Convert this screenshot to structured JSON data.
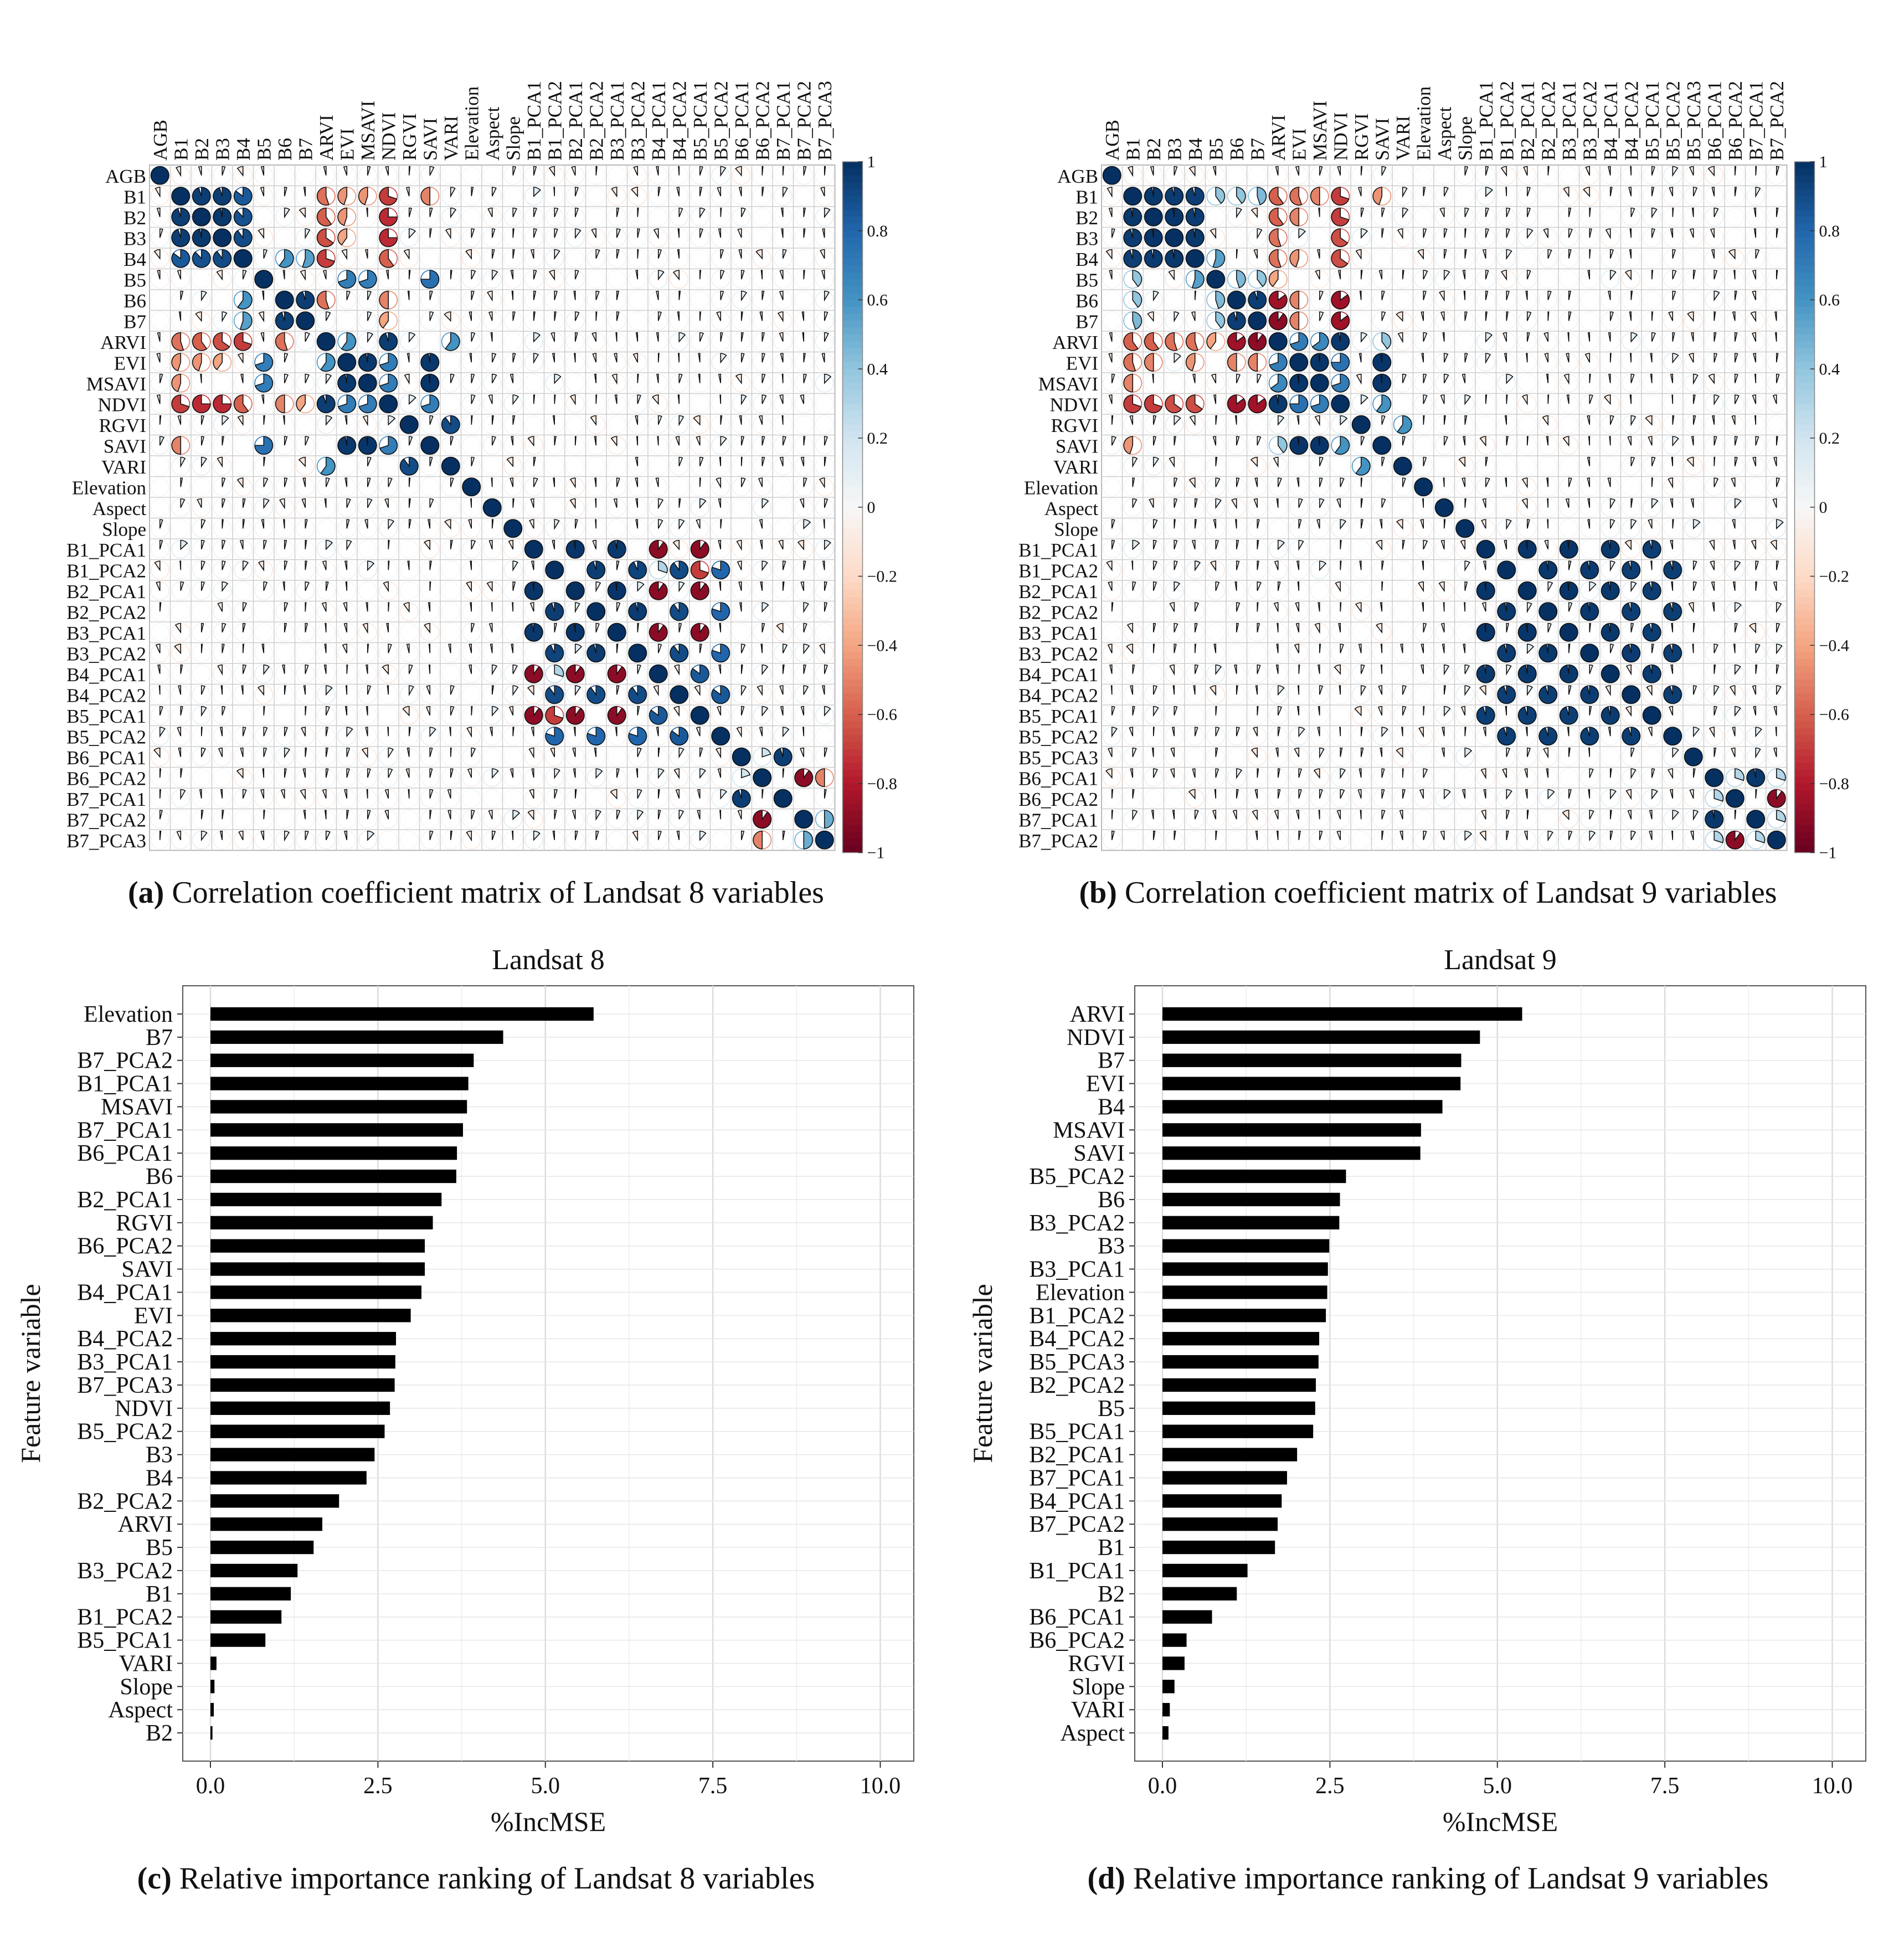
{
  "captions": {
    "a": {
      "letter": "(a)",
      "text": " Correlation coefficient matrix of Landsat 8 variables"
    },
    "b": {
      "letter": "(b)",
      "text": " Correlation coefficient matrix of Landsat 9 variables"
    },
    "c": {
      "letter": "(c)",
      "text": " Relative importance ranking of Landsat 8 variables"
    },
    "d": {
      "letter": "(d)",
      "text": " Relative importance ranking of Landsat 9 variables"
    }
  },
  "colors": {
    "positive": "#0b3a6e",
    "negative": "#7a0a1d",
    "bar": "#000000",
    "grid": "#cfcfcf"
  },
  "chart_data": [
    {
      "type": "heatmap",
      "variables": [
        "AGB",
        "B1",
        "B2",
        "B3",
        "B4",
        "B5",
        "B6",
        "B7",
        "ARVI",
        "EVI",
        "MSAVI",
        "NDVI",
        "RGVI",
        "SAVI",
        "VARI",
        "Elevation",
        "Aspect",
        "Slope",
        "B1_PCA1",
        "B1_PCA2",
        "B2_PCA1",
        "B2_PCA2",
        "B3_PCA1",
        "B3_PCA2",
        "B4_PCA1",
        "B4_PCA2",
        "B5_PCA1",
        "B5_PCA2",
        "B6_PCA1",
        "B6_PCA2",
        "B7_PCA1",
        "B7_PCA2",
        "B7_PCA3"
      ],
      "colorbar": {
        "range": [
          -1,
          1
        ],
        "ticks": [
          "1",
          "0.8",
          "0.6",
          "0.4",
          "0.2",
          "0",
          "−0.2",
          "−0.4",
          "−0.6",
          "−0.8",
          "−1"
        ]
      },
      "strong_pairs": [
        [
          "B1",
          "B2",
          0.95
        ],
        [
          "B1",
          "B3",
          0.95
        ],
        [
          "B1",
          "B4",
          0.85
        ],
        [
          "B2",
          "B3",
          0.97
        ],
        [
          "B2",
          "B4",
          0.88
        ],
        [
          "B3",
          "B4",
          0.9
        ],
        [
          "B5",
          "SAVI",
          0.75
        ],
        [
          "B5",
          "EVI",
          0.7
        ],
        [
          "B5",
          "MSAVI",
          0.7
        ],
        [
          "B6",
          "B7",
          0.95
        ],
        [
          "B6",
          "B4",
          0.6
        ],
        [
          "B7",
          "B4",
          0.55
        ],
        [
          "ARVI",
          "NDVI",
          0.95
        ],
        [
          "ARVI",
          "EVI",
          0.6
        ],
        [
          "EVI",
          "MSAVI",
          0.97
        ],
        [
          "EVI",
          "SAVI",
          0.97
        ],
        [
          "MSAVI",
          "SAVI",
          0.98
        ],
        [
          "EVI",
          "NDVI",
          0.7
        ],
        [
          "MSAVI",
          "NDVI",
          0.7
        ],
        [
          "NDVI",
          "SAVI",
          0.7
        ],
        [
          "RGVI",
          "VARI",
          0.9
        ],
        [
          "ARVI",
          "VARI",
          0.6
        ],
        [
          "B1",
          "ARVI",
          -0.55
        ],
        [
          "B2",
          "ARVI",
          -0.6
        ],
        [
          "B3",
          "ARVI",
          -0.65
        ],
        [
          "B4",
          "ARVI",
          -0.7
        ],
        [
          "B1",
          "NDVI",
          -0.7
        ],
        [
          "B2",
          "NDVI",
          -0.75
        ],
        [
          "B3",
          "NDVI",
          -0.75
        ],
        [
          "B4",
          "NDVI",
          -0.6
        ],
        [
          "B1",
          "EVI",
          -0.45
        ],
        [
          "B2",
          "EVI",
          -0.45
        ],
        [
          "B3",
          "EVI",
          -0.4
        ],
        [
          "B1",
          "SAVI",
          -0.5
        ],
        [
          "B1",
          "MSAVI",
          -0.45
        ],
        [
          "B6",
          "ARVI",
          -0.55
        ],
        [
          "B6",
          "NDVI",
          -0.5
        ],
        [
          "B7",
          "NDVI",
          -0.4
        ],
        [
          "B1_PCA1",
          "B2_PCA1",
          0.98
        ],
        [
          "B1_PCA1",
          "B3_PCA1",
          0.97
        ],
        [
          "B2_PCA1",
          "B3_PCA1",
          0.98
        ],
        [
          "B1_PCA2",
          "B2_PCA2",
          0.95
        ],
        [
          "B1_PCA2",
          "B3_PCA2",
          0.93
        ],
        [
          "B2_PCA2",
          "B3_PCA2",
          0.96
        ],
        [
          "B1_PCA2",
          "B4_PCA2",
          0.9
        ],
        [
          "B2_PCA2",
          "B4_PCA2",
          0.9
        ],
        [
          "B3_PCA2",
          "B4_PCA2",
          0.9
        ],
        [
          "B4_PCA2",
          "B5_PCA2",
          0.85
        ],
        [
          "B1_PCA2",
          "B5_PCA2",
          0.8
        ],
        [
          "B2_PCA2",
          "B5_PCA2",
          0.8
        ],
        [
          "B3_PCA2",
          "B5_PCA2",
          0.8
        ],
        [
          "B4_PCA1",
          "B1_PCA1",
          -0.9
        ],
        [
          "B4_PCA1",
          "B2_PCA1",
          -0.9
        ],
        [
          "B4_PCA1",
          "B3_PCA1",
          -0.9
        ],
        [
          "B5_PCA1",
          "B1_PCA1",
          -0.9
        ],
        [
          "B5_PCA1",
          "B2_PCA1",
          -0.9
        ],
        [
          "B5_PCA1",
          "B3_PCA1",
          -0.9
        ],
        [
          "B4_PCA1",
          "B5_PCA1",
          0.85
        ],
        [
          "B4_PCA1",
          "B1_PCA2",
          0.3
        ],
        [
          "B5_PCA1",
          "B1_PCA2",
          -0.7
        ],
        [
          "B6_PCA1",
          "B7_PCA1",
          0.95
        ],
        [
          "B6_PCA2",
          "B7_PCA2",
          -0.9
        ],
        [
          "B6_PCA2",
          "B6_PCA1",
          0.2
        ],
        [
          "B7_PCA3",
          "B6_PCA2",
          -0.5
        ],
        [
          "B7_PCA3",
          "B7_PCA2",
          0.5
        ]
      ]
    },
    {
      "type": "heatmap",
      "variables": [
        "AGB",
        "B1",
        "B2",
        "B3",
        "B4",
        "B5",
        "B6",
        "B7",
        "ARVI",
        "EVI",
        "MSAVI",
        "NDVI",
        "RGVI",
        "SAVI",
        "VARI",
        "Elevation",
        "Aspect",
        "Slope",
        "B1_PCA1",
        "B1_PCA2",
        "B2_PCA1",
        "B2_PCA2",
        "B3_PCA1",
        "B3_PCA2",
        "B4_PCA1",
        "B4_PCA2",
        "B5_PCA1",
        "B5_PCA2",
        "B5_PCA3",
        "B6_PCA1",
        "B6_PCA2",
        "B7_PCA1",
        "B7_PCA2"
      ],
      "colorbar": {
        "range": [
          -1,
          1
        ],
        "ticks": [
          "1",
          "0.8",
          "0.6",
          "0.4",
          "0.2",
          "0",
          "−0.2",
          "−0.4",
          "−0.6",
          "−0.8",
          "−1"
        ]
      },
      "strong_pairs": [
        [
          "B1",
          "B2",
          0.97
        ],
        [
          "B1",
          "B3",
          0.96
        ],
        [
          "B1",
          "B4",
          0.95
        ],
        [
          "B2",
          "B3",
          0.98
        ],
        [
          "B2",
          "B4",
          0.96
        ],
        [
          "B3",
          "B4",
          0.97
        ],
        [
          "B1",
          "B5",
          0.4
        ],
        [
          "B4",
          "B5",
          0.55
        ],
        [
          "B6",
          "B7",
          0.95
        ],
        [
          "B6",
          "B5",
          0.45
        ],
        [
          "B7",
          "B5",
          0.4
        ],
        [
          "B1",
          "B6",
          0.4
        ],
        [
          "B1",
          "B7",
          0.45
        ],
        [
          "ARVI",
          "NDVI",
          0.97
        ],
        [
          "EVI",
          "MSAVI",
          0.98
        ],
        [
          "EVI",
          "SAVI",
          0.98
        ],
        [
          "MSAVI",
          "SAVI",
          0.98
        ],
        [
          "ARVI",
          "EVI",
          0.7
        ],
        [
          "ARVI",
          "MSAVI",
          0.65
        ],
        [
          "NDVI",
          "EVI",
          0.75
        ],
        [
          "NDVI",
          "MSAVI",
          0.7
        ],
        [
          "NDVI",
          "SAVI",
          0.6
        ],
        [
          "ARVI",
          "SAVI",
          0.4
        ],
        [
          "RGVI",
          "VARI",
          0.6
        ],
        [
          "B6",
          "ARVI",
          -0.85
        ],
        [
          "B7",
          "ARVI",
          -0.9
        ],
        [
          "B6",
          "NDVI",
          -0.85
        ],
        [
          "B7",
          "NDVI",
          -0.85
        ],
        [
          "B1",
          "ARVI",
          -0.6
        ],
        [
          "B2",
          "ARVI",
          -0.6
        ],
        [
          "B3",
          "ARVI",
          -0.55
        ],
        [
          "B4",
          "ARVI",
          -0.55
        ],
        [
          "B1",
          "NDVI",
          -0.7
        ],
        [
          "B2",
          "NDVI",
          -0.7
        ],
        [
          "B3",
          "NDVI",
          -0.65
        ],
        [
          "B4",
          "NDVI",
          -0.65
        ],
        [
          "B1",
          "EVI",
          -0.55
        ],
        [
          "B2",
          "EVI",
          -0.5
        ],
        [
          "B1",
          "MSAVI",
          -0.5
        ],
        [
          "B1",
          "SAVI",
          -0.45
        ],
        [
          "B4",
          "EVI",
          -0.45
        ],
        [
          "B5",
          "ARVI",
          -0.4
        ],
        [
          "B6",
          "EVI",
          -0.5
        ],
        [
          "B7",
          "EVI",
          -0.5
        ],
        [
          "B1_PCA1",
          "B2_PCA1",
          0.98
        ],
        [
          "B1_PCA1",
          "B3_PCA1",
          0.98
        ],
        [
          "B2_PCA1",
          "B3_PCA1",
          0.98
        ],
        [
          "B1_PCA1",
          "B4_PCA1",
          0.97
        ],
        [
          "B2_PCA1",
          "B4_PCA1",
          0.97
        ],
        [
          "B3_PCA1",
          "B4_PCA1",
          0.97
        ],
        [
          "B1_PCA1",
          "B5_PCA1",
          0.95
        ],
        [
          "B2_PCA1",
          "B5_PCA1",
          0.95
        ],
        [
          "B3_PCA1",
          "B5_PCA1",
          0.95
        ],
        [
          "B4_PCA1",
          "B5_PCA1",
          0.96
        ],
        [
          "B1_PCA2",
          "B2_PCA2",
          0.97
        ],
        [
          "B1_PCA2",
          "B3_PCA2",
          0.96
        ],
        [
          "B2_PCA2",
          "B3_PCA2",
          0.97
        ],
        [
          "B1_PCA2",
          "B4_PCA2",
          0.95
        ],
        [
          "B2_PCA2",
          "B4_PCA2",
          0.95
        ],
        [
          "B3_PCA2",
          "B4_PCA2",
          0.96
        ],
        [
          "B1_PCA2",
          "B5_PCA2",
          0.95
        ],
        [
          "B2_PCA2",
          "B5_PCA2",
          0.95
        ],
        [
          "B3_PCA2",
          "B5_PCA2",
          0.95
        ],
        [
          "B4_PCA2",
          "B5_PCA2",
          0.95
        ],
        [
          "B6_PCA1",
          "B7_PCA1",
          0.97
        ],
        [
          "B6_PCA2",
          "B7_PCA2",
          -0.9
        ],
        [
          "B6_PCA1",
          "B6_PCA2",
          0.3
        ],
        [
          "B7_PCA1",
          "B7_PCA2",
          0.3
        ],
        [
          "B6_PCA1",
          "B7_PCA2",
          0.3
        ]
      ]
    },
    {
      "type": "bar",
      "title": "Landsat 8",
      "xlabel": "%IncMSE",
      "ylabel": "Feature variable",
      "xlim": [
        0,
        10.5
      ],
      "xticks": [
        0,
        2.5,
        5,
        7.5,
        10
      ],
      "xtick_labels": [
        "0.0",
        "2.5",
        "5.0",
        "7.5",
        "10.0"
      ],
      "categories": [
        "Elevation",
        "B7",
        "B7_PCA2",
        "B1_PCA1",
        "MSAVI",
        "B7_PCA1",
        "B6_PCA1",
        "B6",
        "B2_PCA1",
        "RGVI",
        "B6_PCA2",
        "SAVI",
        "B4_PCA1",
        "EVI",
        "B4_PCA2",
        "B3_PCA1",
        "B7_PCA3",
        "NDVI",
        "B5_PCA2",
        "B3",
        "B4",
        "B2_PCA2",
        "ARVI",
        "B5",
        "B3_PCA2",
        "B1",
        "B1_PCA2",
        "B5_PCA1",
        "VARI",
        "Slope",
        "Aspect",
        "B2"
      ],
      "values": [
        5.72,
        4.37,
        3.93,
        3.85,
        3.83,
        3.77,
        3.68,
        3.67,
        3.45,
        3.32,
        3.2,
        3.2,
        3.15,
        2.99,
        2.77,
        2.76,
        2.75,
        2.68,
        2.6,
        2.45,
        2.33,
        1.92,
        1.67,
        1.54,
        1.3,
        1.2,
        1.06,
        0.82,
        0.09,
        0.06,
        0.05,
        0.03
      ]
    },
    {
      "type": "bar",
      "title": "Landsat 9",
      "xlabel": "%IncMSE",
      "ylabel": "Feature variable",
      "xlim": [
        0,
        10.5
      ],
      "xticks": [
        0,
        2.5,
        5,
        7.5,
        10
      ],
      "xtick_labels": [
        "0.0",
        "2.5",
        "5.0",
        "7.5",
        "10.0"
      ],
      "categories": [
        "ARVI",
        "NDVI",
        "B7",
        "EVI",
        "B4",
        "MSAVI",
        "SAVI",
        "B5_PCA2",
        "B6",
        "B3_PCA2",
        "B3",
        "B3_PCA1",
        "Elevation",
        "B1_PCA2",
        "B4_PCA2",
        "B5_PCA3",
        "B2_PCA2",
        "B5",
        "B5_PCA1",
        "B2_PCA1",
        "B7_PCA1",
        "B4_PCA1",
        "B7_PCA2",
        "B1",
        "B1_PCA1",
        "B2",
        "B6_PCA1",
        "B6_PCA2",
        "RGVI",
        "Slope",
        "VARI",
        "Aspect"
      ],
      "values": [
        5.37,
        4.74,
        4.46,
        4.45,
        4.18,
        3.86,
        3.85,
        2.74,
        2.65,
        2.64,
        2.49,
        2.47,
        2.46,
        2.44,
        2.34,
        2.33,
        2.29,
        2.28,
        2.25,
        2.01,
        1.86,
        1.78,
        1.72,
        1.68,
        1.27,
        1.11,
        0.74,
        0.36,
        0.33,
        0.18,
        0.11,
        0.09
      ]
    }
  ]
}
